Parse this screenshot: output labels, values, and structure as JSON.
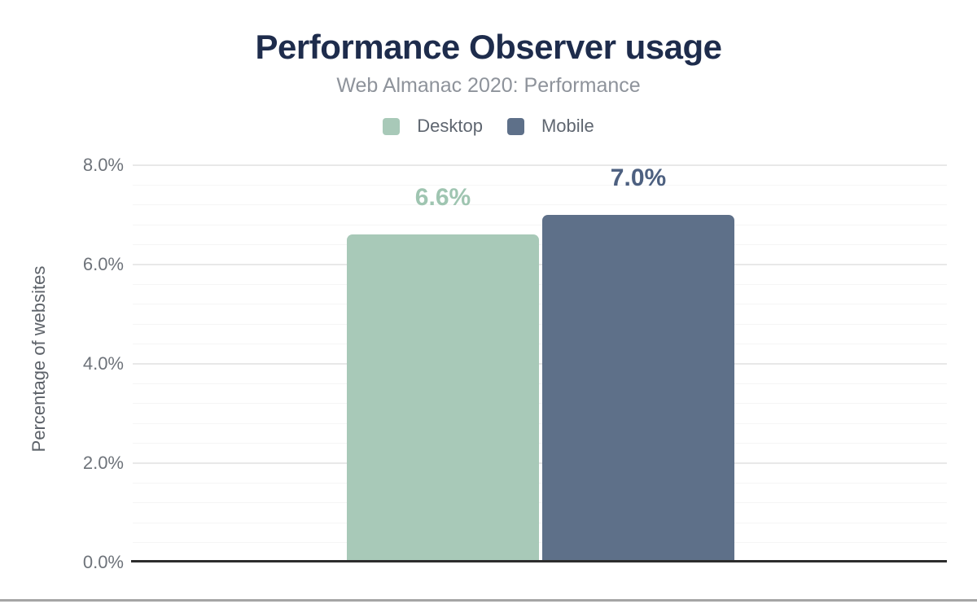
{
  "page": {
    "background": "#ffffff"
  },
  "chart_data": {
    "type": "bar",
    "title": "Performance Observer usage",
    "subtitle": "Web Almanac 2020: Performance",
    "ylabel": "Percentage of websites",
    "xlabel": "",
    "ylim": [
      0,
      8
    ],
    "ytick_values": [
      8,
      6,
      4,
      2,
      0
    ],
    "ytick_labels": [
      "8.0%",
      "6.0%",
      "4.0%",
      "2.0%",
      "0.0%"
    ],
    "ytick_minor_step": 0.4,
    "grid": true,
    "legend_position": "top",
    "categories": [
      "Desktop",
      "Mobile"
    ],
    "series": [
      {
        "name": "Desktop",
        "value": 6.6,
        "label": "6.6%",
        "color": "#a8c9b8",
        "label_color": "#9fc5b1"
      },
      {
        "name": "Mobile",
        "value": 7.0,
        "label": "7.0%",
        "color": "#5e7089",
        "label_color": "#4d6080"
      }
    ],
    "colors": {
      "title": "#1e2c4c",
      "subtitle": "#8e939b",
      "legend_text": "#5f6670",
      "axis_text": "#6e737a",
      "axis_title_text": "#5d6269",
      "grid_major": "#e8e8e8",
      "grid_minor": "#f5f5f5",
      "axis_line": "#2d2d2d",
      "bottom_divider": "#a5a5a5"
    }
  }
}
